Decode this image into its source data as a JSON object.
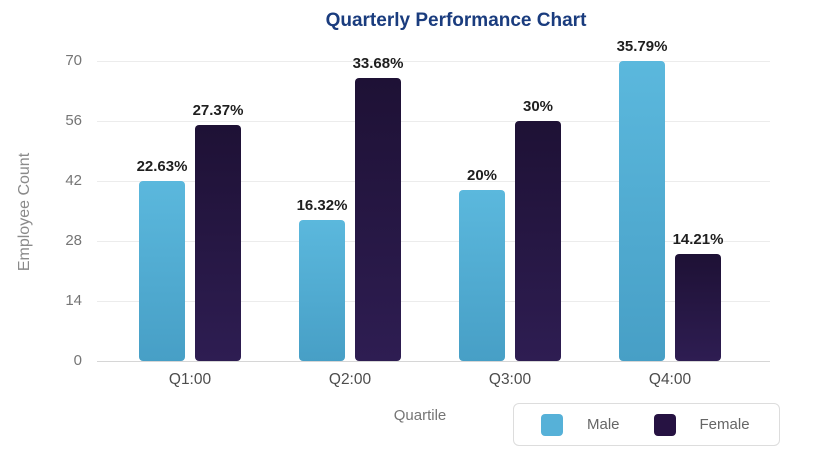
{
  "title": "Quarterly Performance Chart",
  "chart_data": {
    "type": "bar",
    "title": "Quarterly Performance Chart",
    "xlabel": "Quartile",
    "ylabel": "Employee Count",
    "categories": [
      "Q1:00",
      "Q2:00",
      "Q3:00",
      "Q4:00"
    ],
    "series": [
      {
        "name": "Male",
        "color": "#56b1d8",
        "gradient_top": "#5bb8dd",
        "gradient_bottom": "#479fc6",
        "values": [
          42,
          33,
          40,
          70
        ],
        "labels": [
          "22.63%",
          "16.32%",
          "20%",
          "35.79%"
        ]
      },
      {
        "name": "Female",
        "color": "#261242",
        "gradient_top": "#1e1135",
        "gradient_bottom": "#2e1d52",
        "values": [
          55,
          66,
          56,
          25
        ],
        "labels": [
          "27.37%",
          "33.68%",
          "30%",
          "14.21%"
        ]
      }
    ],
    "ylim": [
      0,
      70
    ],
    "yticks": [
      0,
      14,
      28,
      42,
      56,
      70
    ],
    "grid": true,
    "legend_position": "bottom-right"
  },
  "colors": {
    "title": "#1a3c7e",
    "axis_text": "#757575",
    "x_tick_text": "#4d4d4d",
    "data_label": "#1f1f1f",
    "gridline": "#ececec",
    "zero_line": "#d6d6d6",
    "legend_border": "#dddddd",
    "background": "#ffffff"
  }
}
